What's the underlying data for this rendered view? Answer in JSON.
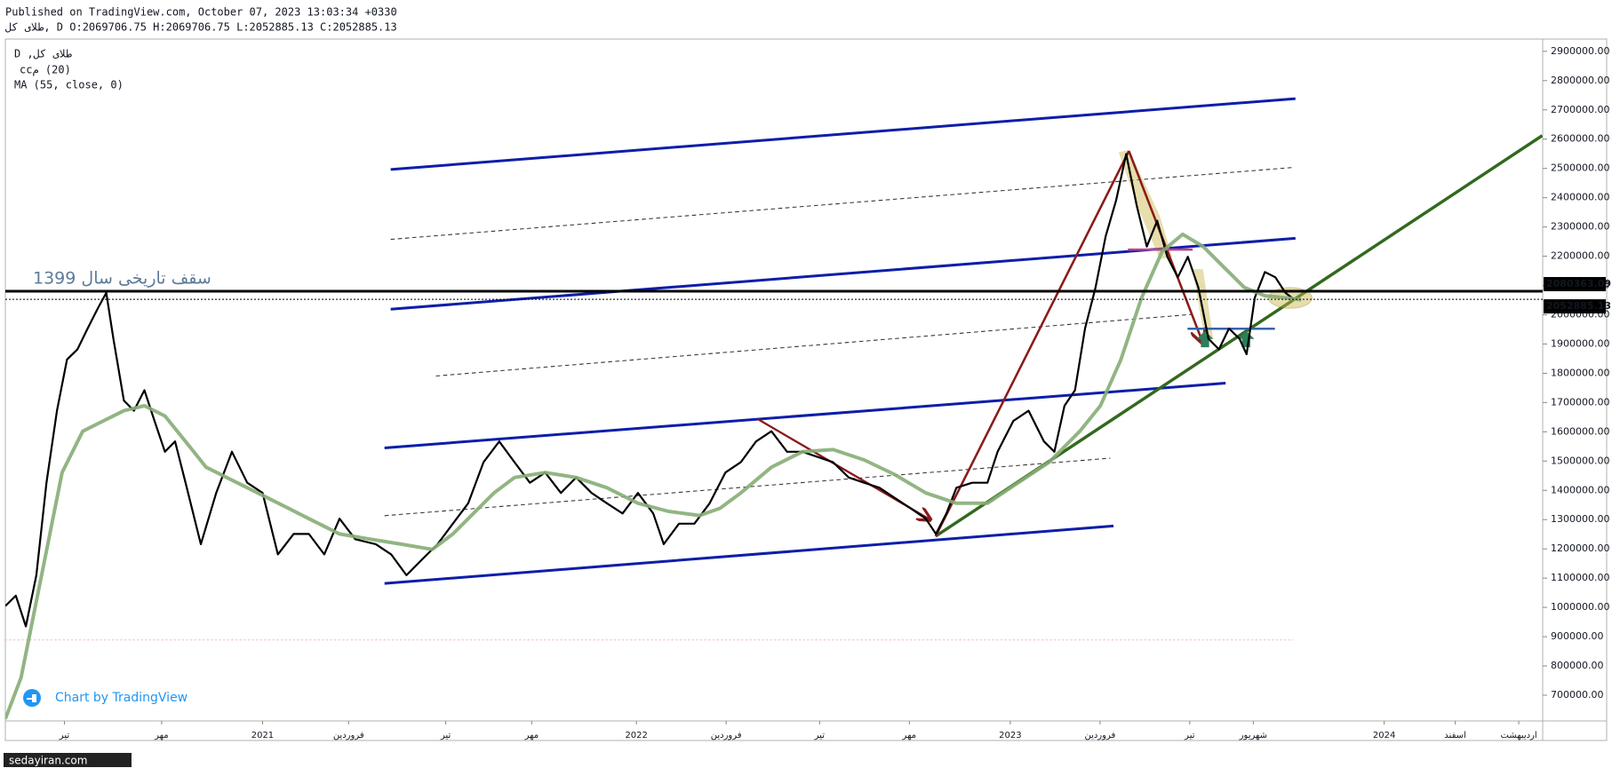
{
  "chart_data": {
    "type": "line",
    "published": "Published on TradingView.com, October 07, 2023 13:03:34 +0330",
    "ohlc_line": "طلای کل, D O:2069706.75 H:2069706.75 L:2052885.13 C:2052885.13",
    "indicator_label": "(20) مcc",
    "annotation": "سقف تاریخی سال 1399",
    "branding": "Chart by TradingView",
    "watermark": "sedayiran.com",
    "xlim": [
      2020.312,
      2024.424
    ],
    "ylim": [
      612000,
      2942000
    ],
    "xticks": [
      {
        "value": 2020.47,
        "label": "تیر"
      },
      {
        "value": 2020.73,
        "label": "مهر"
      },
      2021,
      {
        "value": 2021.23,
        "label": "فروردین"
      },
      {
        "value": 2021.49,
        "label": "تیر"
      },
      {
        "value": 2021.72,
        "label": "مهر"
      },
      2022,
      {
        "value": 2022.24,
        "label": "فروردین"
      },
      {
        "value": 2022.49,
        "label": "تیر"
      },
      {
        "value": 2022.73,
        "label": "مهر"
      },
      2023,
      {
        "value": 2023.24,
        "label": "فروردین"
      },
      {
        "value": 2023.48,
        "label": "تیر"
      },
      {
        "value": 2023.65,
        "label": "شهریور"
      },
      2024,
      {
        "value": 2024.19,
        "label": "اسفند"
      },
      {
        "value": 2024.36,
        "label": "اردیبهشت"
      }
    ],
    "yticks": [
      {
        "value": 700000,
        "label": "700000.00"
      },
      {
        "value": 800000,
        "label": "800000.00"
      },
      {
        "value": 900000,
        "label": "900000.00"
      },
      {
        "value": 1000000,
        "label": "1000000.00"
      },
      {
        "value": 1100000,
        "label": "1100000.00"
      },
      {
        "value": 1200000,
        "label": "1200000.00"
      },
      {
        "value": 1300000,
        "label": "1300000.00"
      },
      {
        "value": 1400000,
        "label": "1400000.00"
      },
      {
        "value": 1500000,
        "label": "1500000.00"
      },
      {
        "value": 1600000,
        "label": "1600000.00"
      },
      {
        "value": 1700000,
        "label": "1700000.00"
      },
      {
        "value": 1800000,
        "label": "1800000.00"
      },
      {
        "value": 1900000,
        "label": "1900000.00"
      },
      {
        "value": 2000000,
        "label": "2000000.00"
      },
      {
        "value": 2100000,
        "label": "2100000.00"
      },
      {
        "value": 2200000,
        "label": "2200000.00"
      },
      {
        "value": 2300000,
        "label": "2300000.00"
      },
      {
        "value": 2400000,
        "label": "2400000.00"
      },
      {
        "value": 2500000,
        "label": "2500000.00"
      },
      {
        "value": 2600000,
        "label": "2600000.00"
      },
      {
        "value": 2700000,
        "label": "2700000.00"
      },
      {
        "value": 2800000,
        "label": "2800000.00"
      },
      {
        "value": 2900000,
        "label": "2900000.00"
      }
    ],
    "price_lines": [
      {
        "value": 2080363.09,
        "color": "#000000",
        "style": "solid"
      },
      {
        "value": 2052885.13,
        "color": "#000000",
        "style": "dotted"
      }
    ],
    "series": [
      {
        "name": "طلای کل, D",
        "color": "#000000",
        "width": 2.2,
        "x": [
          2020.312,
          2020.34,
          2020.367,
          2020.395,
          2020.422,
          2020.45,
          2020.477,
          2020.505,
          2020.532,
          2020.56,
          2020.582,
          2020.601,
          2020.629,
          2020.656,
          2020.684,
          2020.711,
          2020.739,
          2020.766,
          2020.794,
          2020.835,
          2020.876,
          2020.918,
          2020.959,
          2021.0,
          2021.041,
          2021.083,
          2021.124,
          2021.165,
          2021.206,
          2021.248,
          2021.303,
          2021.344,
          2021.385,
          2021.426,
          2021.468,
          2021.509,
          2021.55,
          2021.591,
          2021.633,
          2021.674,
          2021.715,
          2021.756,
          2021.798,
          2021.839,
          2021.88,
          2021.921,
          2021.963,
          2022.004,
          2022.045,
          2022.073,
          2022.114,
          2022.155,
          2022.196,
          2022.238,
          2022.279,
          2022.32,
          2022.361,
          2022.403,
          2022.444,
          2022.485,
          2022.526,
          2022.568,
          2022.609,
          2022.65,
          2022.691,
          2022.733,
          2022.774,
          2022.801,
          2022.829,
          2022.856,
          2022.898,
          2022.939,
          2022.966,
          2023.008,
          2023.049,
          2023.09,
          2023.118,
          2023.145,
          2023.173,
          2023.2,
          2023.228,
          2023.255,
          2023.283,
          2023.31,
          2023.338,
          2023.365,
          2023.393,
          2023.42,
          2023.448,
          2023.475,
          2023.503,
          2023.53,
          2023.558,
          2023.585,
          2023.613,
          2023.632,
          2023.654,
          2023.681,
          2023.709,
          2023.736,
          2023.758
        ],
        "values": [
          1005000,
          1040000,
          935000,
          1110000,
          1426000,
          1672000,
          1847000,
          1882000,
          1953000,
          2023000,
          2075000,
          1918000,
          1707000,
          1672000,
          1742000,
          1637000,
          1532000,
          1567000,
          1426000,
          1216000,
          1391000,
          1532000,
          1426000,
          1391000,
          1181000,
          1251000,
          1251000,
          1181000,
          1303000,
          1233000,
          1216000,
          1181000,
          1110000,
          1163000,
          1216000,
          1286000,
          1356000,
          1496000,
          1567000,
          1496000,
          1426000,
          1461000,
          1391000,
          1444000,
          1391000,
          1356000,
          1321000,
          1391000,
          1321000,
          1216000,
          1286000,
          1286000,
          1356000,
          1461000,
          1496000,
          1567000,
          1602000,
          1532000,
          1532000,
          1514000,
          1496000,
          1444000,
          1426000,
          1409000,
          1374000,
          1339000,
          1303000,
          1251000,
          1321000,
          1409000,
          1426000,
          1426000,
          1532000,
          1637000,
          1672000,
          1567000,
          1532000,
          1689000,
          1742000,
          1953000,
          2093000,
          2268000,
          2391000,
          2549000,
          2374000,
          2233000,
          2321000,
          2198000,
          2128000,
          2198000,
          2093000,
          1918000,
          1882000,
          1953000,
          1918000,
          1865000,
          2058000,
          2146000,
          2128000,
          2075000,
          2053000
        ]
      },
      {
        "name": "MA (55, close, 0)",
        "color": "#86ad76",
        "width": 4,
        "x": [
          2020.312,
          2020.354,
          2020.409,
          2020.464,
          2020.519,
          2020.574,
          2020.629,
          2020.684,
          2020.739,
          2020.794,
          2020.849,
          2020.904,
          2020.959,
          2021.014,
          2021.069,
          2021.124,
          2021.206,
          2021.289,
          2021.371,
          2021.454,
          2021.509,
          2021.564,
          2021.619,
          2021.674,
          2021.756,
          2021.839,
          2021.921,
          2022.004,
          2022.086,
          2022.169,
          2022.224,
          2022.279,
          2022.361,
          2022.444,
          2022.526,
          2022.609,
          2022.691,
          2022.774,
          2022.856,
          2022.939,
          2023.021,
          2023.104,
          2023.186,
          2023.241,
          2023.296,
          2023.351,
          2023.406,
          2023.461,
          2023.516,
          2023.571,
          2023.626,
          2023.681,
          2023.736,
          2023.778
        ],
        "values": [
          619000,
          760000,
          1110000,
          1461000,
          1602000,
          1637000,
          1672000,
          1689000,
          1654000,
          1567000,
          1479000,
          1444000,
          1409000,
          1374000,
          1339000,
          1303000,
          1251000,
          1233000,
          1216000,
          1198000,
          1251000,
          1321000,
          1391000,
          1444000,
          1461000,
          1444000,
          1409000,
          1356000,
          1328000,
          1314000,
          1339000,
          1391000,
          1479000,
          1532000,
          1539000,
          1504000,
          1454000,
          1391000,
          1356000,
          1356000,
          1426000,
          1496000,
          1602000,
          1689000,
          1847000,
          2058000,
          2216000,
          2275000,
          2233000,
          2163000,
          2093000,
          2065000,
          2058000,
          2051000
        ]
      }
    ]
  }
}
